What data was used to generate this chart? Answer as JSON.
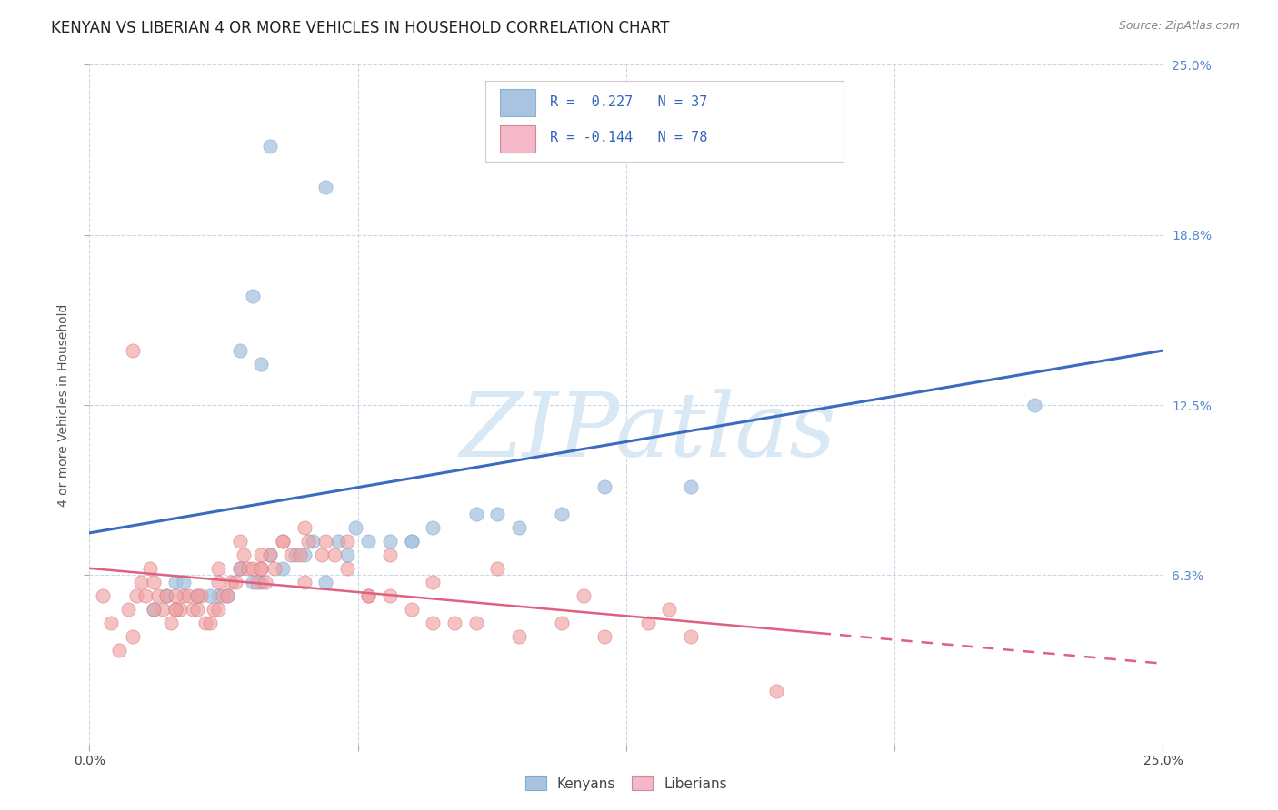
{
  "title": "KENYAN VS LIBERIAN 4 OR MORE VEHICLES IN HOUSEHOLD CORRELATION CHART",
  "source_text": "Source: ZipAtlas.com",
  "ylabel": "4 or more Vehicles in Household",
  "xlim": [
    0.0,
    25.0
  ],
  "ylim": [
    0.0,
    25.0
  ],
  "xticks": [
    0.0,
    6.25,
    12.5,
    18.75,
    25.0
  ],
  "yticks": [
    0.0,
    6.25,
    12.5,
    18.75,
    25.0
  ],
  "ytick_labels_right": [
    "",
    "6.3%",
    "12.5%",
    "18.8%",
    "25.0%"
  ],
  "grid_color": "#c8d8e8",
  "background_color": "#ffffff",
  "kenyan_color": "#a8c4e0",
  "liberian_color": "#f0a0a0",
  "trend_blue": "#3a6bbf",
  "trend_pink": "#e06080",
  "legend_r1": "R =  0.227",
  "legend_n1": "N = 37",
  "legend_r2": "R = -0.144",
  "legend_n2": "N = 78",
  "legend_label1": "Kenyans",
  "legend_label2": "Liberians",
  "title_fontsize": 12,
  "source_fontsize": 9,
  "axis_label_fontsize": 10,
  "tick_fontsize": 10,
  "legend_fontsize": 11,
  "kenyan_points_x": [
    4.2,
    5.5,
    3.8,
    3.5,
    4.0,
    1.5,
    2.0,
    2.5,
    3.0,
    3.5,
    4.0,
    4.5,
    5.0,
    5.5,
    6.0,
    6.5,
    7.0,
    7.5,
    8.0,
    9.0,
    10.0,
    11.0,
    12.0,
    14.0,
    22.0,
    1.8,
    2.2,
    2.8,
    3.2,
    3.8,
    4.2,
    4.8,
    5.2,
    5.8,
    6.2,
    7.5,
    9.5
  ],
  "kenyan_points_y": [
    22.0,
    20.5,
    16.5,
    14.5,
    14.0,
    5.0,
    6.0,
    5.5,
    5.5,
    6.5,
    6.0,
    6.5,
    7.0,
    6.0,
    7.0,
    7.5,
    7.5,
    7.5,
    8.0,
    8.5,
    8.0,
    8.5,
    9.5,
    9.5,
    12.5,
    5.5,
    6.0,
    5.5,
    5.5,
    6.0,
    7.0,
    7.0,
    7.5,
    7.5,
    8.0,
    7.5,
    8.5
  ],
  "liberian_points_x": [
    0.3,
    0.5,
    0.7,
    0.9,
    1.0,
    1.1,
    1.2,
    1.3,
    1.4,
    1.5,
    1.6,
    1.7,
    1.8,
    1.9,
    2.0,
    2.1,
    2.2,
    2.3,
    2.4,
    2.5,
    2.6,
    2.7,
    2.8,
    2.9,
    3.0,
    3.1,
    3.2,
    3.3,
    3.4,
    3.5,
    3.6,
    3.7,
    3.8,
    3.9,
    4.0,
    4.1,
    4.2,
    4.3,
    4.5,
    4.7,
    4.9,
    5.1,
    5.4,
    5.7,
    6.0,
    6.5,
    7.0,
    7.5,
    8.0,
    8.5,
    9.0,
    10.0,
    11.0,
    12.0,
    13.0,
    14.0,
    16.0,
    1.0,
    1.5,
    2.0,
    2.5,
    3.0,
    3.5,
    4.0,
    4.5,
    5.0,
    5.5,
    6.0,
    7.0,
    8.0,
    9.5,
    11.5,
    13.5,
    2.0,
    3.0,
    4.0,
    5.0,
    6.5
  ],
  "liberian_points_y": [
    5.5,
    4.5,
    3.5,
    5.0,
    4.0,
    5.5,
    6.0,
    5.5,
    6.5,
    6.0,
    5.5,
    5.0,
    5.5,
    4.5,
    5.0,
    5.0,
    5.5,
    5.5,
    5.0,
    5.0,
    5.5,
    4.5,
    4.5,
    5.0,
    5.0,
    5.5,
    5.5,
    6.0,
    6.0,
    6.5,
    7.0,
    6.5,
    6.5,
    6.0,
    6.5,
    6.0,
    7.0,
    6.5,
    7.5,
    7.0,
    7.0,
    7.5,
    7.0,
    7.0,
    6.5,
    5.5,
    5.5,
    5.0,
    4.5,
    4.5,
    4.5,
    4.0,
    4.5,
    4.0,
    4.5,
    4.0,
    2.0,
    14.5,
    5.0,
    5.5,
    5.5,
    6.5,
    7.5,
    7.0,
    7.5,
    8.0,
    7.5,
    7.5,
    7.0,
    6.0,
    6.5,
    5.5,
    5.0,
    5.0,
    6.0,
    6.5,
    6.0,
    5.5
  ],
  "kenyan_trend_start_y": 7.8,
  "kenyan_trend_end_y": 14.5,
  "liberian_trend_start_y": 6.5,
  "liberian_trend_end_x_solid": 17.0,
  "liberian_trend_end_y": 3.0,
  "watermark_text": "ZIPatlas",
  "watermark_color": "#d8e8f5"
}
